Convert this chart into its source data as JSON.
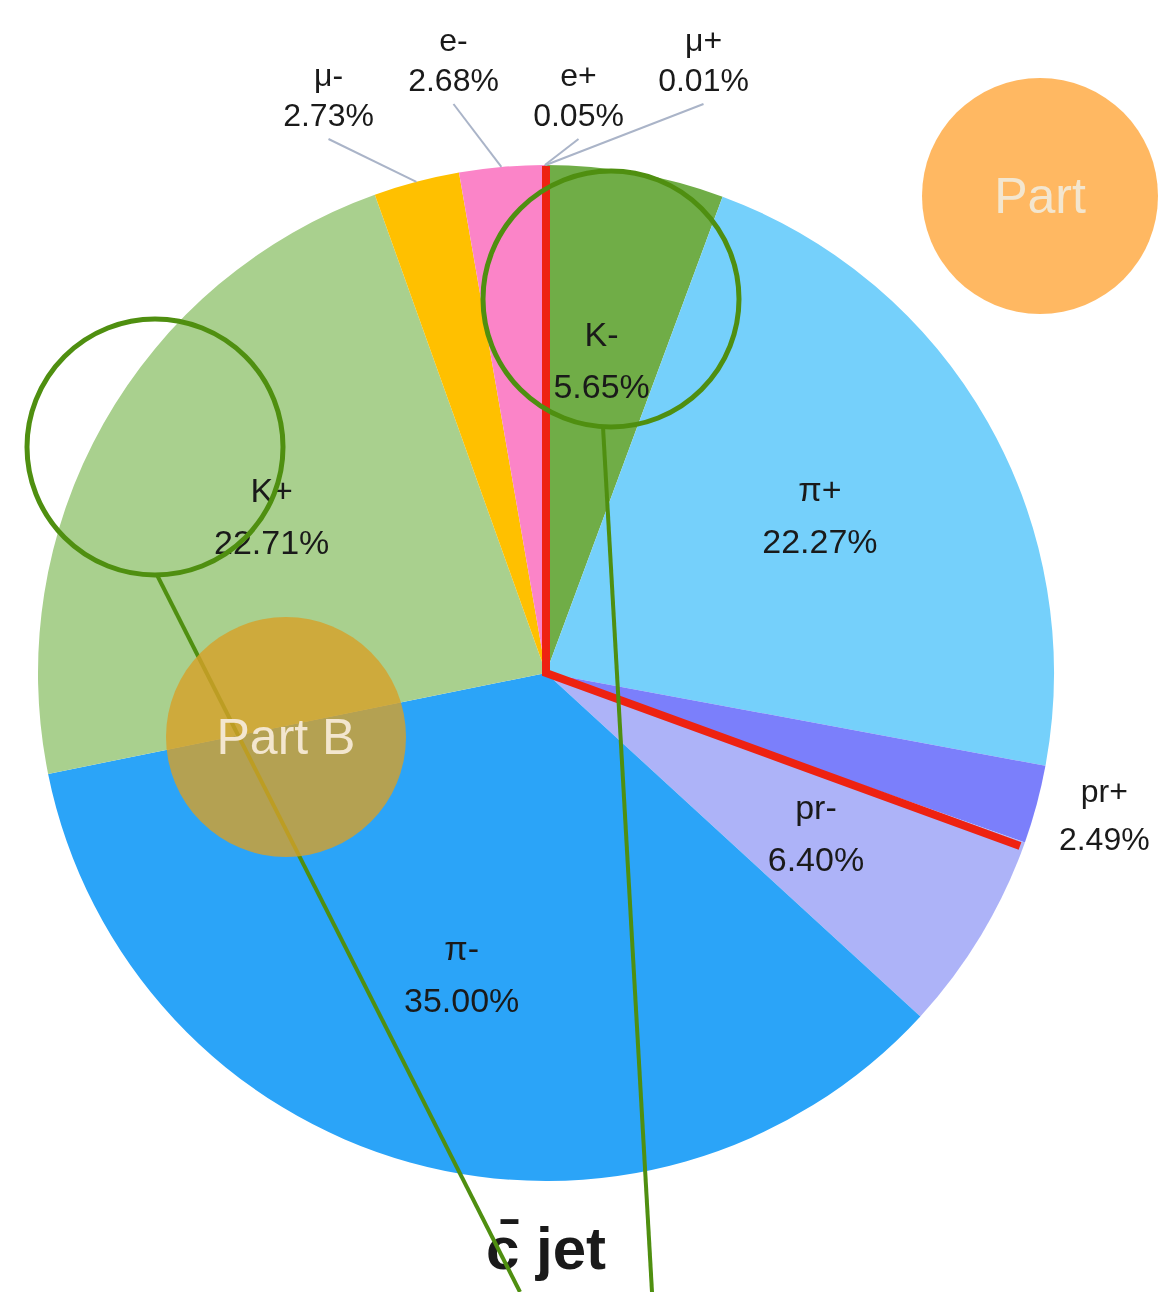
{
  "chart_data": {
    "type": "pie",
    "title": "c̄ jet",
    "categories": [
      "K-",
      "π+",
      "pr+",
      "pr-",
      "π-",
      "K+",
      "μ-",
      "e-",
      "e+",
      "μ+"
    ],
    "values": [
      5.65,
      22.27,
      2.49,
      6.4,
      35.0,
      22.71,
      2.73,
      2.68,
      0.05,
      0.01
    ],
    "value_labels": [
      "5.65%",
      "22.27%",
      "2.49%",
      "6.40%",
      "35.00%",
      "22.71%",
      "2.73%",
      "2.68%",
      "0.05%",
      "0.01%"
    ],
    "colors": [
      "#70ad47",
      "#75d0fb",
      "#7b7ffb",
      "#adb3f8",
      "#2ba4f8",
      "#a9d08e",
      "#ffc000",
      "#fb84c8",
      "#e066a8",
      "#4c9a2a"
    ],
    "legend": false,
    "annotations": [
      "Part B",
      "Part"
    ]
  }
}
